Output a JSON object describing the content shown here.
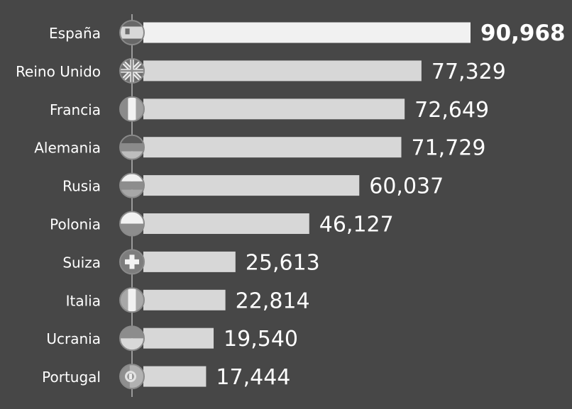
{
  "chart_data": {
    "type": "bar",
    "title": "",
    "xlabel": "",
    "ylabel": "",
    "orientation": "horizontal",
    "categories": [
      "España",
      "Reino Unido",
      "Francia",
      "Alemania",
      "Rusia",
      "Polonia",
      "Suiza",
      "Italia",
      "Ucrania",
      "Portugal"
    ],
    "values": [
      90968,
      77329,
      72649,
      71729,
      60037,
      46127,
      25613,
      22814,
      19540,
      17444
    ],
    "value_labels": [
      "90,968",
      "77,329",
      "72,649",
      "71,729",
      "60,037",
      "46,127",
      "25,613",
      "22,814",
      "19,540",
      "17,444"
    ],
    "flag_icons": [
      "spain-flag-icon",
      "united-kingdom-flag-icon",
      "france-flag-icon",
      "germany-flag-icon",
      "russia-flag-icon",
      "poland-flag-icon",
      "switzerland-flag-icon",
      "italy-flag-icon",
      "ukraine-flag-icon",
      "portugal-flag-icon"
    ],
    "xlim": [
      0,
      90968
    ],
    "grid": false,
    "legend": "none",
    "colors": {
      "background": "#474747",
      "bar": "#d7d7d7",
      "bar_highlight": "#f1f1f1",
      "label_text": "#ffffff",
      "value_text": "#ffffff",
      "axis_line": "#9a9a9a"
    }
  }
}
